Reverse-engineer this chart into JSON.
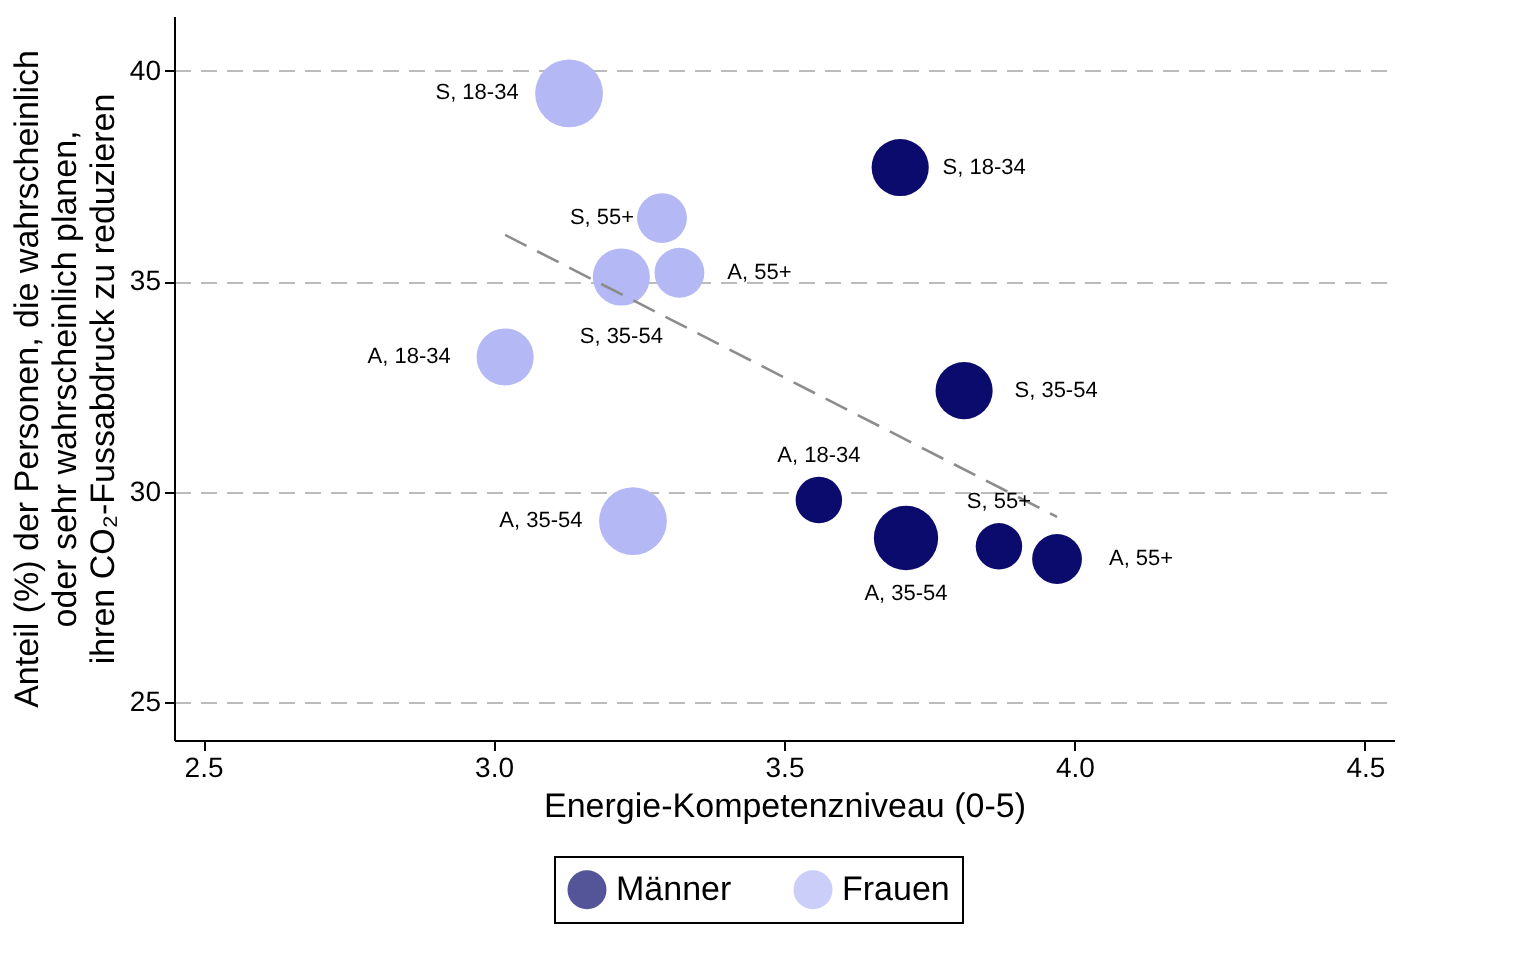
{
  "chart_data": {
    "type": "bubble",
    "xlabel": "Energie-Kompetenzniveau (0-5)",
    "ylabel": "Anteil (%) der Personen, die wahrscheinlich\noder sehr wahrscheinlich planen,\nihren CO₂-Fussabdruck zu reduzieren",
    "xlim": [
      2.45,
      4.55
    ],
    "ylim": [
      24.1,
      41.3
    ],
    "xticks": [
      {
        "value": 2.5,
        "label": "2.5"
      },
      {
        "value": 3,
        "label": "3.0"
      },
      {
        "value": 3.5,
        "label": "3.5"
      },
      {
        "value": 4,
        "label": "4.0"
      },
      {
        "value": 4.5,
        "label": "4.5"
      }
    ],
    "yticks": [
      25,
      30,
      35,
      40
    ],
    "grid": "y",
    "legend": "bottom",
    "series": [
      {
        "name": "Männer",
        "marker": "circle",
        "color": "#0b0b6e",
        "x": [
          3.7,
          3.81,
          3.56,
          3.71,
          3.87,
          3.97
        ],
        "values": [
          37.7,
          32.4,
          29.8,
          28.9,
          28.7,
          28.4
        ],
        "sizes": [
          0.71,
          0.71,
          0.47,
          0.9,
          0.47,
          0.54
        ]
      },
      {
        "name": "Frauen",
        "marker": "circle",
        "color": "#b4b9f5",
        "x": [
          3.13,
          3.29,
          3.22,
          3.32,
          3.02,
          3.24
        ],
        "values": [
          39.46,
          36.5,
          35.1,
          35.2,
          33.2,
          29.3
        ],
        "sizes": [
          1,
          0.54,
          0.71,
          0.54,
          0.71,
          1
        ]
      },
      {
        "type": "line",
        "color": "#8c8c8c",
        "line_style": "dashed",
        "x": [
          3.02,
          3.97
        ],
        "values": [
          36.1,
          29.4
        ]
      }
    ],
    "annotations": [
      {
        "text": "S, 18-34",
        "x": 3.13,
        "y": 39.46
      },
      {
        "text": "S, 55+",
        "x": 3.29,
        "y": 36.5
      },
      {
        "text": "S, 35-54",
        "x": 3.22,
        "y": 35.1
      },
      {
        "text": "A, 55+",
        "x": 3.32,
        "y": 35.2
      },
      {
        "text": "A, 18-34",
        "x": 3.02,
        "y": 33.2
      },
      {
        "text": "A, 35-54",
        "x": 3.24,
        "y": 29.3
      },
      {
        "text": "S, 18-34",
        "x": 3.7,
        "y": 37.7
      },
      {
        "text": "S, 35-54",
        "x": 3.81,
        "y": 32.4
      },
      {
        "text": "A, 18-34",
        "x": 3.56,
        "y": 29.8
      },
      {
        "text": "A, 35-54",
        "x": 3.71,
        "y": 28.9
      },
      {
        "text": "S, 55+",
        "x": 3.87,
        "y": 28.7
      },
      {
        "text": "A, 55+",
        "x": 3.97,
        "y": 28.4
      }
    ]
  }
}
